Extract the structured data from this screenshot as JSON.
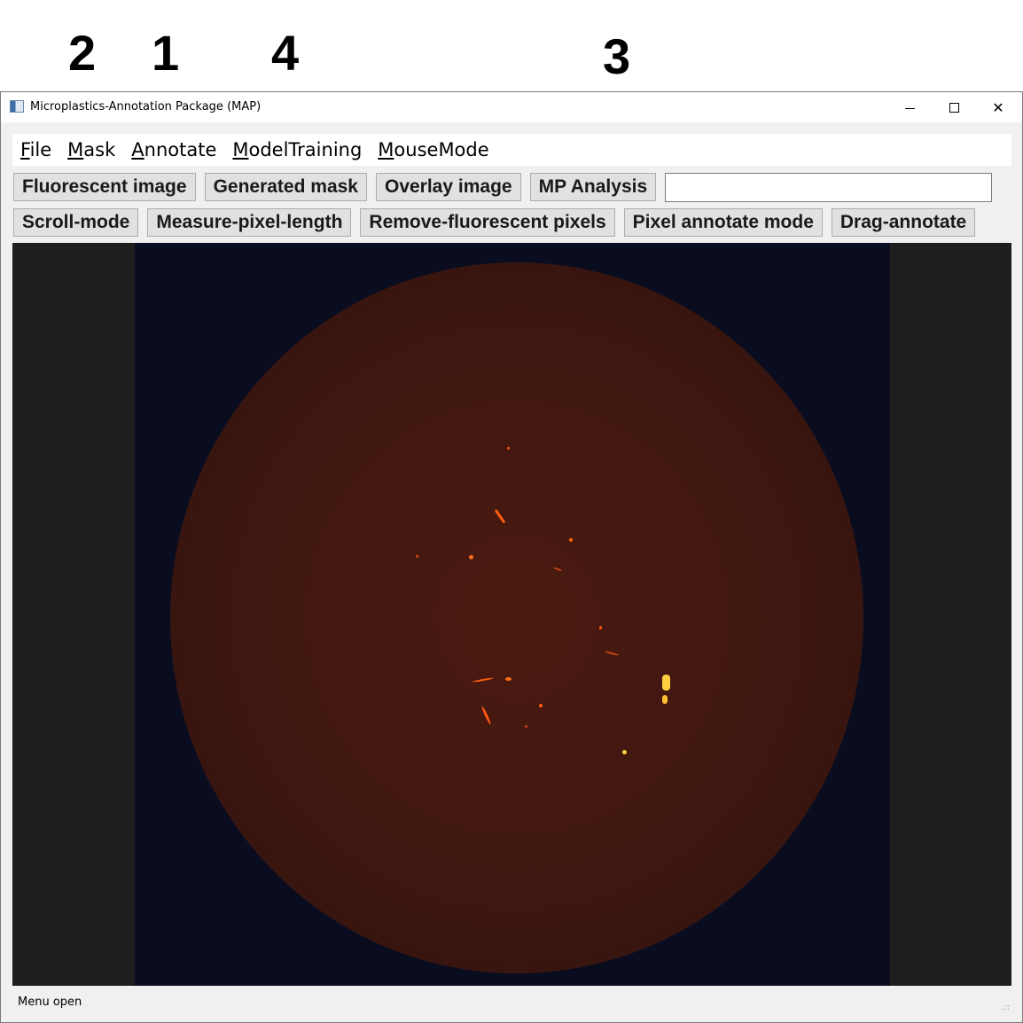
{
  "annotations": [
    "2",
    "1",
    "4",
    "3"
  ],
  "window": {
    "title": "Microplastics-Annotation Package (MAP)",
    "minimize_icon": "minimize-icon",
    "maximize_icon": "maximize-icon",
    "close_icon": "close-icon",
    "close_glyph": "✕"
  },
  "menu": {
    "items": [
      {
        "underline": "F",
        "rest": "ile"
      },
      {
        "underline": "M",
        "rest": "ask"
      },
      {
        "underline": "A",
        "rest": "nnotate"
      },
      {
        "underline": "M",
        "rest": "odelTraining"
      },
      {
        "underline": "M",
        "rest": "ouseMode"
      }
    ]
  },
  "toolbar": {
    "row1": [
      "Fluorescent image",
      "Generated mask",
      "Overlay image",
      "MP Analysis"
    ],
    "input_value": "",
    "row2": [
      "Scroll-mode",
      "Measure-pixel-length",
      "Remove-fluorescent pixels",
      "Pixel annotate mode",
      "Drag-annotate"
    ]
  },
  "status": {
    "text": "Menu open",
    "grip": ".::"
  },
  "colors": {
    "dish": "#3f1710",
    "background": "#0a0d1f",
    "fluorescence": "#ff5a10",
    "bright_fluorescence": "#ffd040"
  }
}
